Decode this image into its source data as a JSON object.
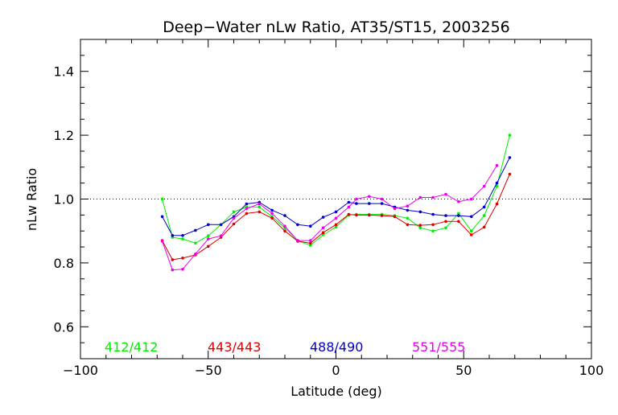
{
  "chart_data": {
    "type": "line",
    "title": "Deep−Water nLw Ratio, AT35/ST15, 2003256",
    "xlabel": "Latitude (deg)",
    "ylabel": "nLw Ratio",
    "xlim": [
      -100,
      100
    ],
    "ylim": [
      0.5,
      1.5
    ],
    "x_ticks": [
      -100,
      -50,
      0,
      50,
      100
    ],
    "x_tick_labels": [
      "−100",
      "−50",
      "0",
      "50",
      "100"
    ],
    "y_ticks": [
      0.6,
      0.8,
      1.0,
      1.2,
      1.4
    ],
    "y_tick_labels": [
      "0.6",
      "0.8",
      "1.0",
      "1.2",
      "1.4"
    ],
    "reference_line": {
      "y": 1.0,
      "style": "dotted"
    },
    "grid": false,
    "legend_placement": "bottom-inside",
    "x": [
      -68,
      -64,
      -60,
      -55,
      -50,
      -45,
      -40,
      -35,
      -30,
      -25,
      -20,
      -15,
      -10,
      -5,
      0,
      5,
      8,
      13,
      18,
      23,
      28,
      33,
      38,
      43,
      48,
      53,
      58,
      63,
      68
    ],
    "series": [
      {
        "name": "412/412",
        "color": "#00ee00",
        "values": [
          1.0,
          0.88,
          0.875,
          0.862,
          0.885,
          0.92,
          0.96,
          0.975,
          0.975,
          0.945,
          0.91,
          0.87,
          0.855,
          0.888,
          0.912,
          0.95,
          0.952,
          0.952,
          0.952,
          0.948,
          0.94,
          0.91,
          0.9,
          0.91,
          0.955,
          0.9,
          0.948,
          1.04,
          1.2
        ]
      },
      {
        "name": "443/443",
        "color": "#dd0000",
        "values": [
          0.87,
          0.81,
          0.815,
          0.825,
          0.852,
          0.88,
          0.922,
          0.955,
          0.96,
          0.94,
          0.9,
          0.868,
          0.862,
          0.895,
          0.92,
          0.952,
          0.95,
          0.95,
          0.948,
          0.945,
          0.92,
          0.918,
          0.92,
          0.93,
          0.93,
          0.888,
          0.912,
          0.985,
          1.078
        ]
      },
      {
        "name": "488/490",
        "color": "#0000cc",
        "values": [
          0.945,
          0.886,
          0.886,
          0.902,
          0.92,
          0.92,
          0.945,
          0.985,
          0.99,
          0.965,
          0.948,
          0.92,
          0.915,
          0.943,
          0.96,
          0.99,
          0.986,
          0.986,
          0.986,
          0.975,
          0.965,
          0.96,
          0.952,
          0.948,
          0.948,
          0.945,
          0.975,
          1.05,
          1.13
        ]
      },
      {
        "name": "551/555",
        "color": "#ee00ee",
        "values": [
          0.868,
          0.778,
          0.78,
          0.828,
          0.875,
          0.885,
          0.94,
          0.97,
          0.985,
          0.955,
          0.915,
          0.87,
          0.87,
          0.91,
          0.94,
          0.975,
          1.0,
          1.008,
          1.0,
          0.97,
          0.978,
          1.005,
          1.005,
          1.015,
          0.992,
          1.0,
          1.04,
          1.105,
          null
        ]
      }
    ]
  }
}
